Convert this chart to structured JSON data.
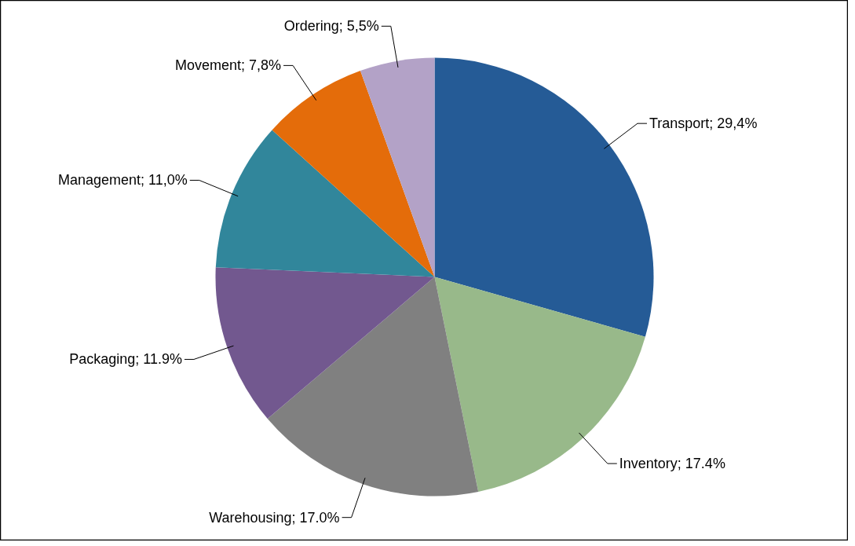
{
  "chart_data": {
    "type": "pie",
    "categories": [
      "Transport",
      "Inventory",
      "Warehousing",
      "Packaging",
      "Management",
      "Movement",
      "Ordering"
    ],
    "values": [
      29.4,
      17.4,
      17.0,
      11.9,
      11.0,
      7.8,
      5.5
    ],
    "value_labels": [
      "29,4%",
      "17.4%",
      "17.0%",
      "11.9%",
      "11,0%",
      "7,8%",
      "5,5%"
    ],
    "colors": [
      "#255b96",
      "#98b98a",
      "#808080",
      "#72588f",
      "#31869b",
      "#e46c0a",
      "#b3a2c7"
    ]
  }
}
